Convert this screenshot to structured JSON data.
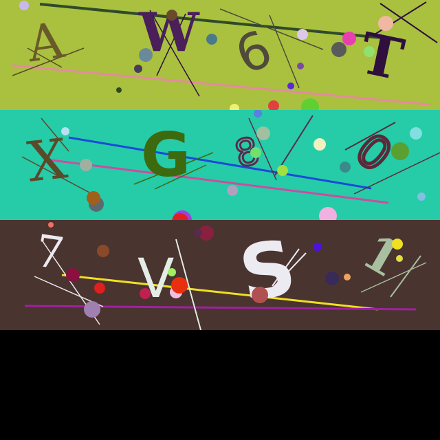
{
  "captcha": {
    "rows": [
      {
        "background": "#a9c13f",
        "glyphs": [
          {
            "char": "A",
            "color": "#6a5a2a",
            "name": "glyph-a"
          },
          {
            "char": "W",
            "color": "#4a1f5a",
            "name": "glyph-w"
          },
          {
            "char": "6",
            "color": "#4f4a3a",
            "name": "glyph-6"
          },
          {
            "char": "T",
            "color": "#2e0f3e",
            "name": "glyph-t"
          }
        ]
      },
      {
        "background": "#26cba8",
        "glyphs": [
          {
            "char": "X",
            "color": "#5a4a2a",
            "name": "glyph-x"
          },
          {
            "char": "G",
            "color": "#3e6a0f",
            "name": "glyph-g"
          },
          {
            "char": "8",
            "color": "#5a2a4a",
            "name": "glyph-8"
          },
          {
            "char": "0",
            "color": "#5a2a3a",
            "name": "glyph-0"
          }
        ]
      },
      {
        "background": "#4a3430",
        "glyphs": [
          {
            "char": "7",
            "color": "#eceaee",
            "name": "glyph-7"
          },
          {
            "char": "V",
            "color": "#e4ece6",
            "name": "glyph-v"
          },
          {
            "char": "S",
            "color": "#ecebf2",
            "name": "glyph-s"
          },
          {
            "char": "1",
            "color": "#a9c0a0",
            "name": "glyph-1"
          }
        ]
      }
    ],
    "empty_area_color": "#000000"
  }
}
